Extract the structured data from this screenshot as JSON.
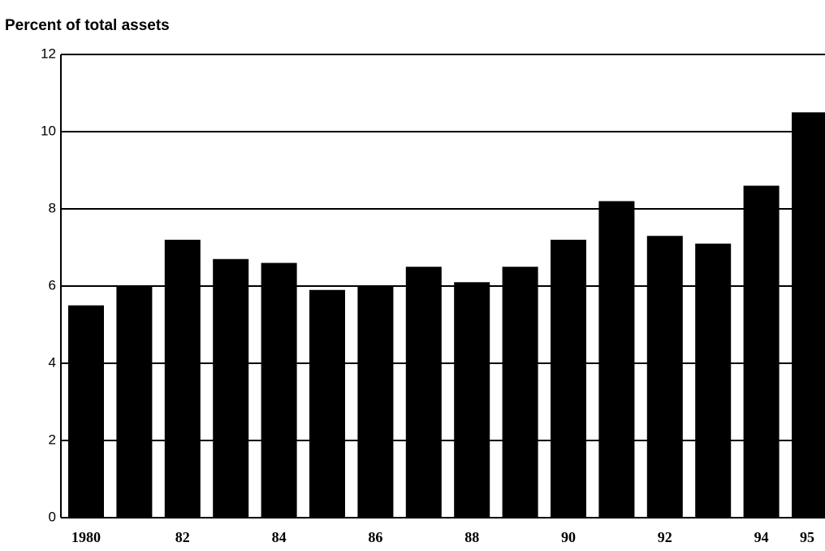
{
  "chart_data": {
    "type": "bar",
    "title": "Percent of total assets",
    "categories": [
      "1980",
      null,
      "82",
      null,
      "84",
      null,
      "86",
      null,
      "88",
      null,
      "90",
      null,
      "92",
      null,
      "94",
      "95"
    ],
    "values": [
      5.5,
      6.0,
      7.2,
      6.7,
      6.6,
      5.9,
      6.0,
      6.5,
      6.1,
      6.5,
      7.2,
      8.2,
      7.3,
      7.1,
      8.6,
      10.5
    ],
    "color": "#000000",
    "ylim": [
      0,
      12
    ],
    "yticks": [
      0,
      2,
      4,
      6,
      8,
      10,
      12
    ],
    "grid": true
  }
}
